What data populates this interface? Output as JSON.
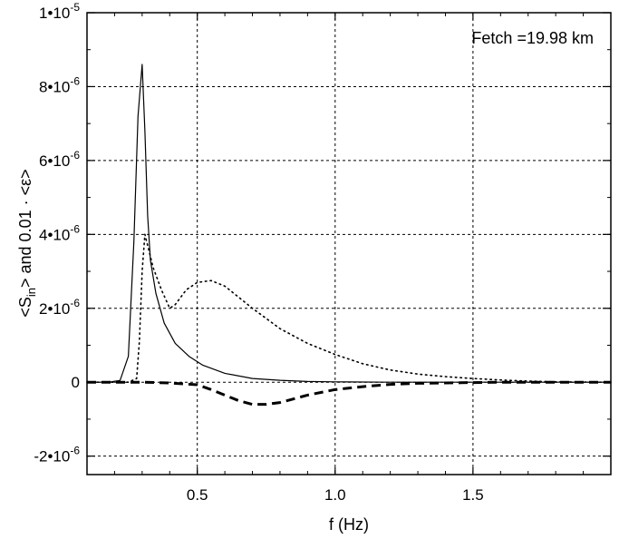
{
  "chart_data": {
    "type": "line",
    "xlabel": "f (Hz)",
    "ylabel": "<S_in> and 0.01 · <ε>",
    "annotation": "Fetch =19.98 km",
    "xlim": [
      0.1,
      2.0
    ],
    "ylim": [
      -2.5e-06,
      1e-05
    ],
    "grid": true,
    "x_ticks": [
      {
        "value": 0.5,
        "label": "0.5"
      },
      {
        "value": 1.0,
        "label": "1.0"
      },
      {
        "value": 1.5,
        "label": "1.5"
      }
    ],
    "y_ticks": [
      {
        "value": -2e-06,
        "mant": "-2•10",
        "exp": "-6"
      },
      {
        "value": 0,
        "mant": "0",
        "exp": ""
      },
      {
        "value": 2e-06,
        "mant": "2•10",
        "exp": "-6"
      },
      {
        "value": 4e-06,
        "mant": "4•10",
        "exp": "-6"
      },
      {
        "value": 6e-06,
        "mant": "6•10",
        "exp": "-6"
      },
      {
        "value": 8e-06,
        "mant": "8•10",
        "exp": "-6"
      },
      {
        "value": 1e-05,
        "mant": "1•10",
        "exp": "-5"
      }
    ],
    "series": [
      {
        "style": "solid",
        "x": [
          0.1,
          0.18,
          0.22,
          0.25,
          0.27,
          0.285,
          0.3,
          0.31,
          0.32,
          0.33,
          0.35,
          0.38,
          0.42,
          0.47,
          0.52,
          0.6,
          0.7,
          0.8,
          0.9,
          1.0,
          1.2,
          1.5,
          2.0
        ],
        "y": [
          0,
          0,
          5e-08,
          7e-07,
          3.8e-06,
          7.2e-06,
          8.6e-06,
          6.8e-06,
          4.5e-06,
          3.3e-06,
          2.4e-06,
          1.6e-06,
          1.05e-06,
          7e-07,
          4.6e-07,
          2.4e-07,
          1e-07,
          5e-08,
          2e-08,
          1e-08,
          0,
          0,
          0
        ]
      },
      {
        "style": "dotted",
        "x": [
          0.1,
          0.25,
          0.28,
          0.29,
          0.3,
          0.31,
          0.32,
          0.34,
          0.37,
          0.4,
          0.42,
          0.46,
          0.5,
          0.55,
          0.6,
          0.65,
          0.7,
          0.8,
          0.9,
          1.0,
          1.1,
          1.2,
          1.3,
          1.4,
          1.5,
          1.6,
          1.7,
          1.8,
          2.0
        ],
        "y": [
          0,
          0,
          1e-07,
          1.1e-06,
          3e-06,
          4e-06,
          3.7e-06,
          3.1e-06,
          2.5e-06,
          2e-06,
          2.1e-06,
          2.5e-06,
          2.7e-06,
          2.75e-06,
          2.6e-06,
          2.3e-06,
          2e-06,
          1.45e-06,
          1.05e-06,
          7.5e-07,
          5e-07,
          3.3e-07,
          2.2e-07,
          1.5e-07,
          1e-07,
          6e-08,
          3e-08,
          1e-08,
          0
        ]
      },
      {
        "style": "dashed",
        "x": [
          0.1,
          0.3,
          0.4,
          0.5,
          0.55,
          0.6,
          0.65,
          0.7,
          0.75,
          0.8,
          0.85,
          0.9,
          1.0,
          1.1,
          1.2,
          1.3,
          1.4,
          1.5,
          1.6,
          1.8,
          2.0
        ],
        "y": [
          0,
          0,
          -2e-08,
          -7e-08,
          -2e-07,
          -3.5e-07,
          -5e-07,
          -6e-07,
          -6e-07,
          -5.5e-07,
          -4.5e-07,
          -3.5e-07,
          -2e-07,
          -1.2e-07,
          -6e-08,
          -3e-08,
          -2e-08,
          -1e-08,
          0,
          0,
          0
        ]
      }
    ]
  }
}
